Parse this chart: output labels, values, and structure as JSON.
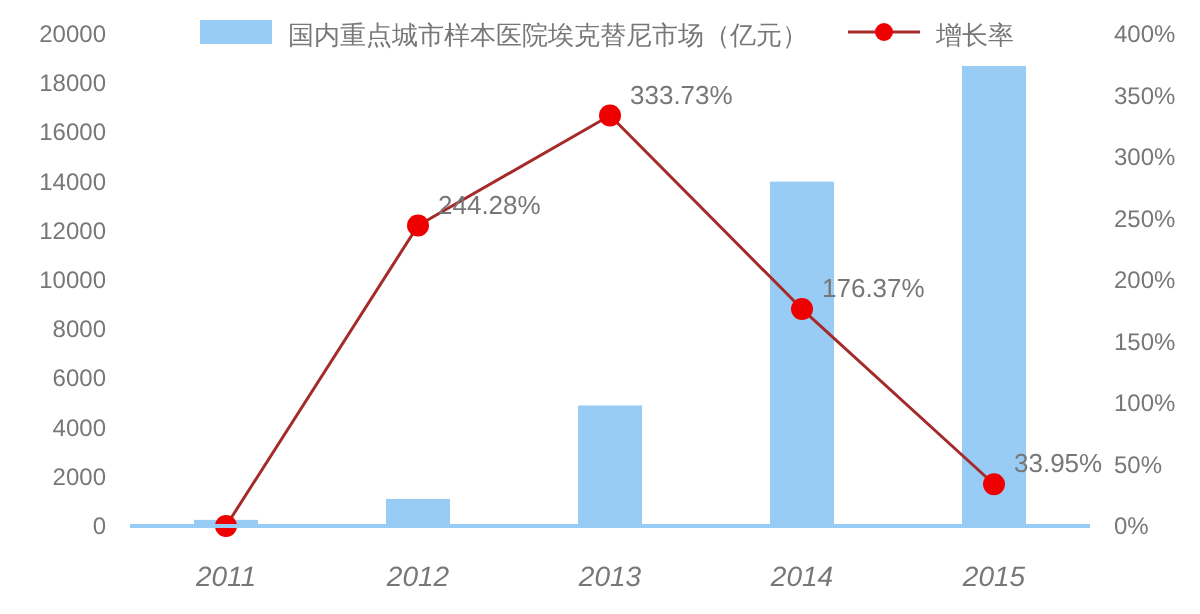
{
  "chart_data": {
    "type": "bar",
    "categories": [
      "2011",
      "2012",
      "2013",
      "2014",
      "2015"
    ],
    "series": [
      {
        "name": "国内重点城市样本医院埃克替尼市场（亿元）",
        "color": "#99ccf5",
        "values": [
          250,
          1100,
          4900,
          14000,
          18700
        ]
      },
      {
        "name": "增长率",
        "type": "line",
        "axis": "y2",
        "color": "#a52a2a",
        "marker": "circle",
        "values": [
          0,
          244.28,
          333.73,
          176.37,
          33.95
        ],
        "value_labels": [
          null,
          "244.28%",
          "333.73%",
          "176.37%",
          "33.95%"
        ]
      }
    ],
    "ylim": [
      0,
      20000
    ],
    "yticks": [
      0,
      2000,
      4000,
      6000,
      8000,
      10000,
      12000,
      14000,
      16000,
      18000,
      20000
    ],
    "y2lim": [
      0,
      400
    ],
    "y2ticks": [
      {
        "value": 0,
        "label": "0%"
      },
      {
        "value": 50,
        "label": "50%"
      },
      {
        "value": 100,
        "label": "100%"
      },
      {
        "value": 150,
        "label": "150%"
      },
      {
        "value": 200,
        "label": "200%"
      },
      {
        "value": 250,
        "label": "250%"
      },
      {
        "value": 300,
        "label": "300%"
      },
      {
        "value": 350,
        "label": "350%"
      },
      {
        "value": 400,
        "label": "400%"
      }
    ],
    "legend": "top",
    "grid": false
  }
}
